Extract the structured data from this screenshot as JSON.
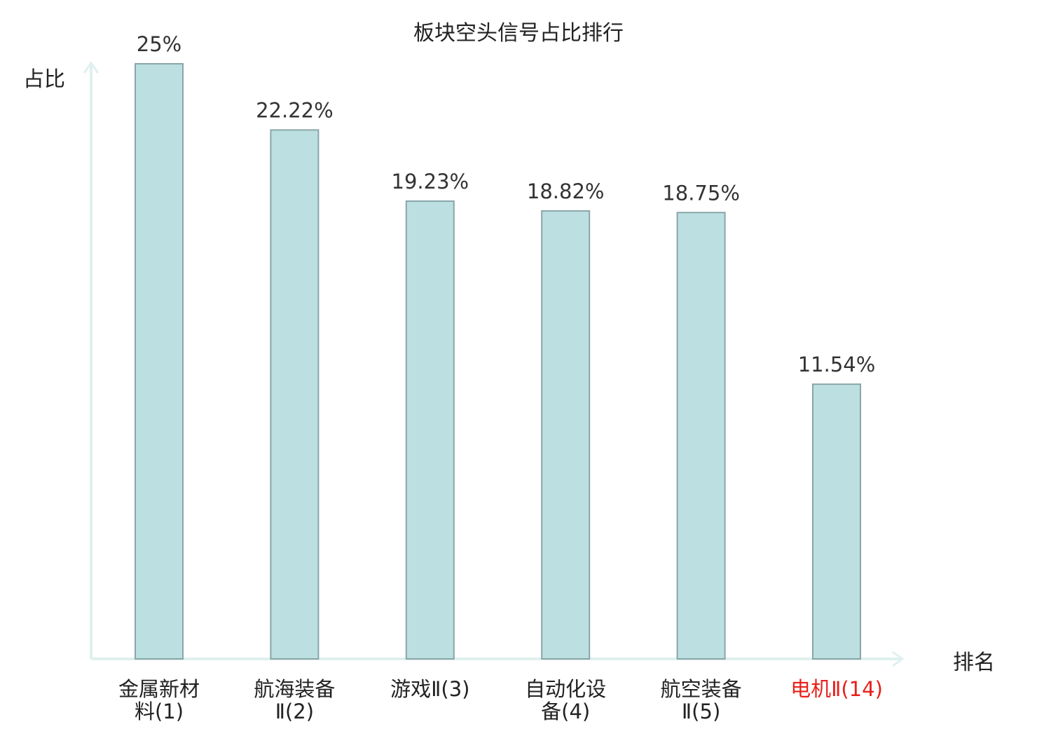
{
  "chart_data": {
    "type": "bar",
    "title": "板块空头信号占比排行",
    "ylabel": "占比",
    "xlabel": "排名",
    "categories": [
      {
        "line1": "金属新材",
        "line2": "料(1)"
      },
      {
        "line1": "航海装备",
        "line2": "Ⅱ(2)"
      },
      {
        "line1": "游戏Ⅱ(3)",
        "line2": ""
      },
      {
        "line1": "自动化设",
        "line2": "备(4)"
      },
      {
        "line1": "航空装备",
        "line2": "Ⅱ(5)"
      },
      {
        "line1": "电机Ⅱ(14)",
        "line2": ""
      }
    ],
    "values": [
      25,
      22.22,
      19.23,
      18.82,
      18.75,
      11.54
    ],
    "value_labels": [
      "25%",
      "22.22%",
      "19.23%",
      "18.82%",
      "18.75%",
      "11.54%"
    ],
    "highlight_index": 5,
    "ylim": [
      0,
      25
    ],
    "grid": false,
    "colors": {
      "bar_fill": "#bce0e2",
      "bar_stroke": "#8aa5a8",
      "axis": "#dff0ee",
      "highlight_text": "#e8201a"
    }
  }
}
